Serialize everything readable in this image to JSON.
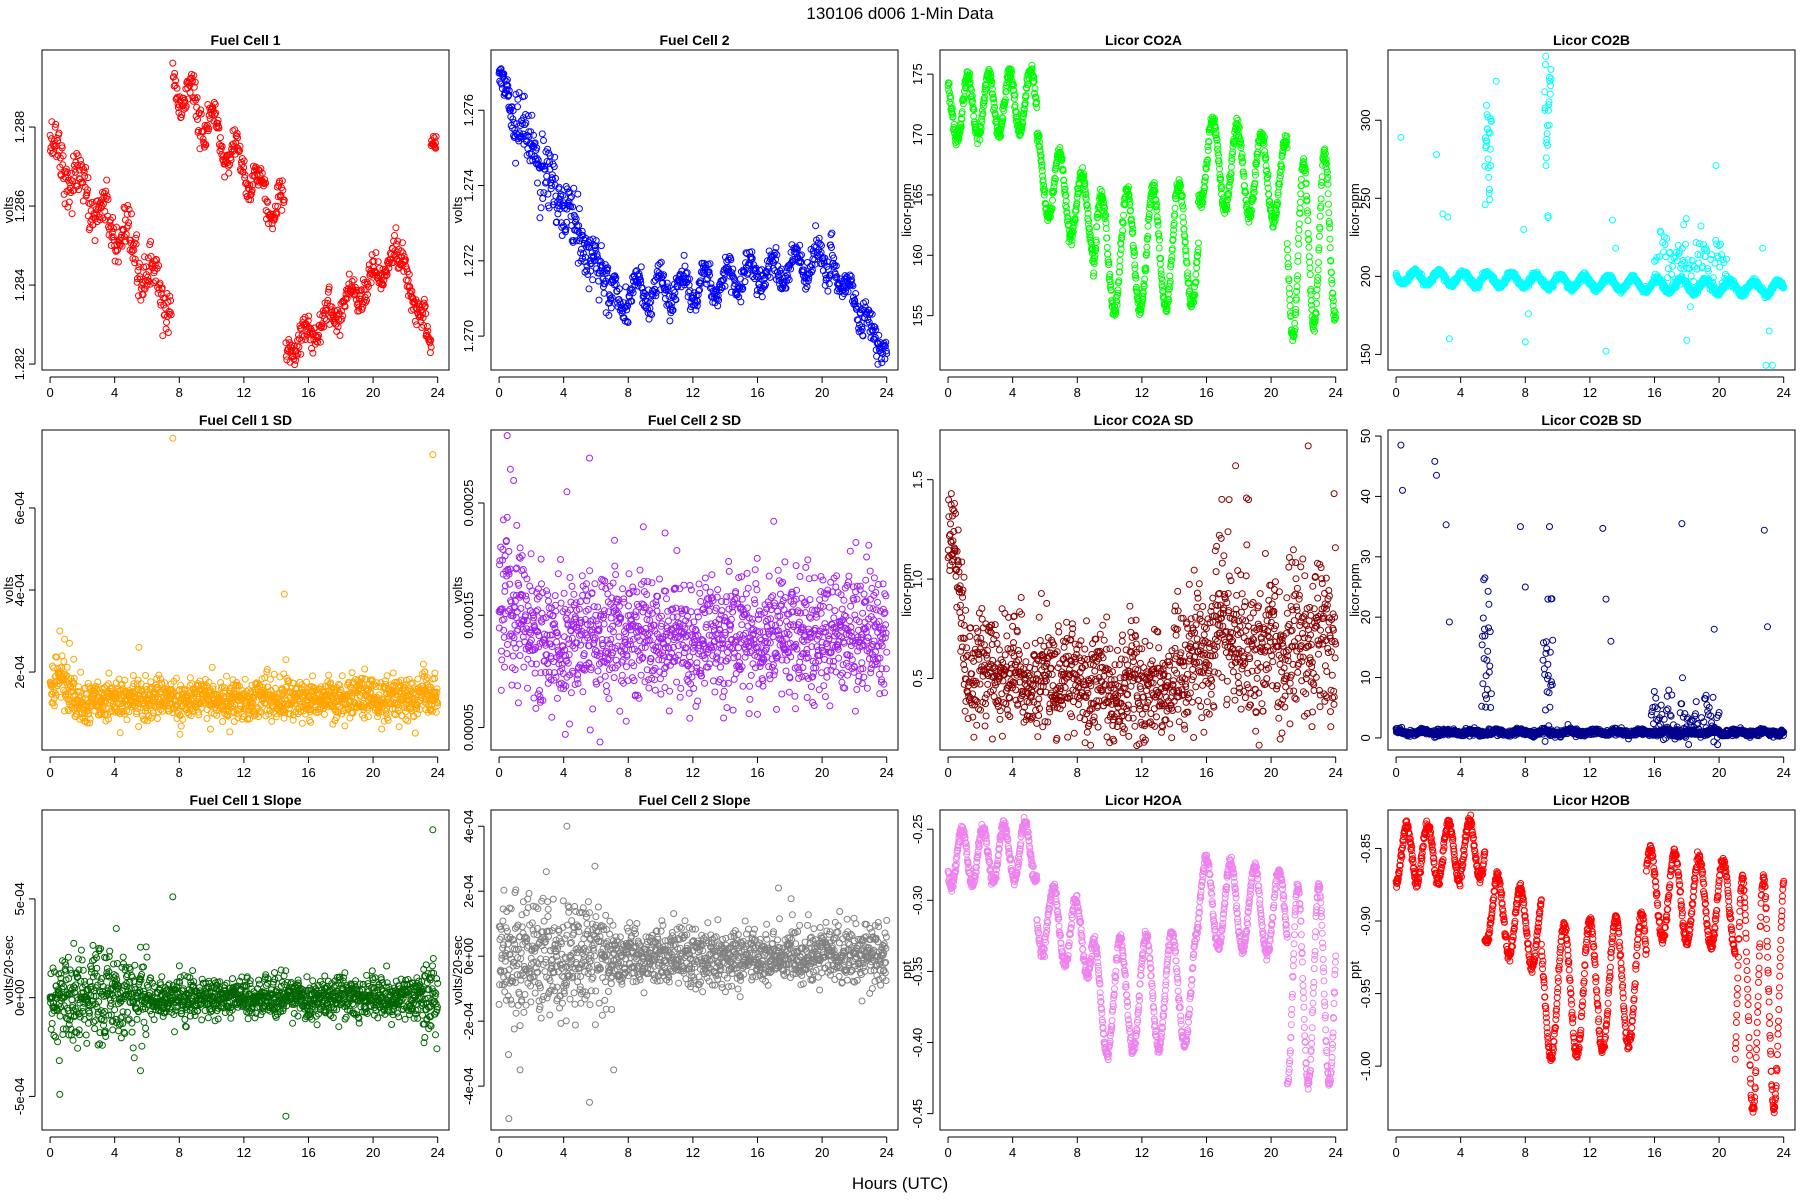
{
  "figure": {
    "title": "130106    d006    1-Min Data",
    "xlabel": "Hours (UTC)",
    "x_ticks": [
      0,
      4,
      8,
      12,
      16,
      20,
      24
    ]
  },
  "chart_data": [
    {
      "type": "scatter",
      "title": "Fuel Cell 1",
      "ylabel": "volts",
      "color": "#ff0000",
      "xlim": [
        -0.5,
        24.7
      ],
      "ylim": [
        1.28185,
        1.28995
      ],
      "y_ticks": [
        1.282,
        1.284,
        1.286,
        1.288
      ],
      "y_tick_labels": [
        "1.282",
        "1.284",
        "1.286",
        "1.288"
      ],
      "series": [
        {
          "segments": [
            {
              "x0": 0.0,
              "x1": 7.5,
              "y0": 1.2875,
              "y1": 1.2835,
              "osc": 0.0004,
              "period": 1.5,
              "noise": 0.0003,
              "n": 260
            },
            {
              "x0": 7.6,
              "x1": 14.5,
              "y0": 1.2892,
              "y1": 1.2857,
              "osc": 0.0005,
              "period": 1.4,
              "noise": 0.0002,
              "n": 240
            },
            {
              "x0": 14.6,
              "x1": 21.5,
              "y0": 1.2823,
              "y1": 1.2847,
              "osc": 0.0003,
              "period": 1.4,
              "noise": 0.0002,
              "n": 240
            },
            {
              "x0": 21.5,
              "x1": 23.6,
              "y0": 1.2847,
              "y1": 1.2826,
              "osc": 0.0002,
              "period": 1.2,
              "noise": 0.0002,
              "n": 80
            },
            {
              "x0": 23.6,
              "x1": 23.9,
              "y0": 1.2876,
              "y1": 1.2876,
              "osc": 0.0,
              "period": 1.0,
              "noise": 0.0001,
              "n": 15
            }
          ]
        }
      ]
    },
    {
      "type": "scatter",
      "title": "Fuel Cell 2",
      "ylabel": "volts",
      "color": "#0000ff",
      "xlim": [
        -0.5,
        24.7
      ],
      "ylim": [
        1.2691,
        1.2776
      ],
      "y_ticks": [
        1.27,
        1.272,
        1.274,
        1.276
      ],
      "y_tick_labels": [
        "1.270",
        "1.272",
        "1.274",
        "1.276"
      ],
      "series": [
        {
          "segments": [
            {
              "x0": 0.0,
              "x1": 0.6,
              "y0": 1.277,
              "y1": 1.2765,
              "osc": 0.0,
              "period": 1.0,
              "noise": 0.0002,
              "n": 30
            },
            {
              "x0": 0.6,
              "x1": 7.0,
              "y0": 1.276,
              "y1": 1.2712,
              "osc": 0.0002,
              "period": 1.5,
              "noise": 0.0004,
              "n": 260
            },
            {
              "x0": 7.0,
              "x1": 20.5,
              "y0": 1.271,
              "y1": 1.272,
              "osc": 0.0004,
              "period": 1.4,
              "noise": 0.0002,
              "n": 480
            },
            {
              "x0": 20.5,
              "x1": 24.0,
              "y0": 1.272,
              "y1": 1.2695,
              "osc": 0.0003,
              "period": 1.2,
              "noise": 0.0002,
              "n": 130
            }
          ]
        }
      ]
    },
    {
      "type": "scatter",
      "title": "Licor CO2A",
      "ylabel": "licor-ppm",
      "color": "#00ff00",
      "xlim": [
        -0.5,
        24.7
      ],
      "ylim": [
        150.5,
        177.0
      ],
      "y_ticks": [
        155,
        160,
        165,
        170,
        175
      ],
      "y_tick_labels": [
        "155",
        "160",
        "165",
        "170",
        "175"
      ],
      "series": [
        {
          "segments": [
            {
              "x0": 0.0,
              "x1": 5.5,
              "y0": 172,
              "y1": 173,
              "osc": 2.5,
              "period": 1.3,
              "noise": 0.3,
              "n": 320
            },
            {
              "x0": 5.5,
              "x1": 9.0,
              "y0": 167,
              "y1": 163,
              "osc": 3.0,
              "period": 1.4,
              "noise": 0.3,
              "n": 200
            },
            {
              "x0": 9.0,
              "x1": 15.5,
              "y0": 160,
              "y1": 161,
              "osc": 5.0,
              "period": 1.6,
              "noise": 0.3,
              "n": 360
            },
            {
              "x0": 15.5,
              "x1": 21.0,
              "y0": 168,
              "y1": 166,
              "osc": 3.5,
              "period": 1.5,
              "noise": 0.3,
              "n": 300
            },
            {
              "x0": 21.0,
              "x1": 24.0,
              "y0": 160,
              "y1": 162,
              "osc": 7.0,
              "period": 1.3,
              "noise": 0.3,
              "n": 170
            }
          ]
        }
      ]
    },
    {
      "type": "scatter",
      "title": "Licor CO2B",
      "ylabel": "licor-ppm",
      "color": "#00ffff",
      "xlim": [
        -0.5,
        24.7
      ],
      "ylim": [
        140,
        345
      ],
      "y_ticks": [
        150,
        200,
        250,
        300
      ],
      "y_tick_labels": [
        "150",
        "200",
        "250",
        "300"
      ],
      "series": [
        {
          "segments": [
            {
              "x0": 0.0,
              "x1": 24.0,
              "y0": 200,
              "y1": 192,
              "osc": 4.0,
              "period": 1.5,
              "noise": 1.0,
              "n": 1300
            },
            {
              "x0": 5.5,
              "x1": 5.9,
              "y0": 280,
              "y1": 285,
              "osc": 20,
              "period": 0.3,
              "noise": 15,
              "n": 25
            },
            {
              "x0": 9.2,
              "x1": 9.6,
              "y0": 290,
              "y1": 300,
              "osc": 20,
              "period": 0.3,
              "noise": 20,
              "n": 25
            },
            {
              "x0": 16.0,
              "x1": 20.5,
              "y0": 212,
              "y1": 208,
              "osc": 6,
              "period": 1.2,
              "noise": 9,
              "n": 90
            }
          ]
        }
      ],
      "extra_points": {
        "x": [
          0.3,
          2.5,
          2.9,
          3.2,
          3.3,
          6.2,
          7.9,
          8.0,
          8.2,
          13.0,
          13.4,
          13.6,
          17.8,
          18.0,
          19.8,
          22.7,
          22.9,
          23.1,
          23.3
        ],
        "y": [
          289,
          278,
          240,
          238,
          160,
          325,
          230,
          158,
          176,
          152,
          236,
          218,
          233,
          159,
          271,
          218,
          143,
          165,
          143
        ]
      }
    },
    {
      "type": "scatter",
      "title": "Fuel Cell 1 SD",
      "ylabel": "volts",
      "color": "#ffa500",
      "xlim": [
        -0.5,
        24.7
      ],
      "ylim": [
        1e-05,
        0.00079
      ],
      "y_ticks": [
        0.0002,
        0.0004,
        0.0006
      ],
      "y_tick_labels": [
        "2e-04",
        "4e-04",
        "6e-04"
      ],
      "series": [
        {
          "segments": [
            {
              "x0": 0.0,
              "x1": 1.5,
              "y0": 0.00018,
              "y1": 0.00016,
              "osc": 2e-05,
              "period": 1.0,
              "noise": 3e-05,
              "n": 80
            },
            {
              "x0": 1.5,
              "x1": 24.0,
              "y0": 0.00013,
              "y1": 0.00014,
              "osc": 5e-06,
              "period": 2.0,
              "noise": 2.5e-05,
              "n": 1300
            }
          ]
        }
      ],
      "extra_points": {
        "x": [
          0.6,
          0.9,
          1.2,
          5.5,
          7.6,
          14.5,
          14.6,
          23.7
        ],
        "y": [
          0.0003,
          0.00028,
          0.00027,
          0.00026,
          0.00077,
          0.00039,
          0.00023,
          0.00073
        ]
      }
    },
    {
      "type": "scatter",
      "title": "Fuel Cell 2 SD",
      "ylabel": "volts",
      "color": "#a020f0",
      "xlim": [
        -0.5,
        24.7
      ],
      "ylim": [
        3e-05,
        0.000315
      ],
      "y_ticks": [
        5e-05,
        0.00015,
        0.00025
      ],
      "y_tick_labels": [
        "0.00005",
        "0.00015",
        "0.00025"
      ],
      "series": [
        {
          "segments": [
            {
              "x0": 0.0,
              "x1": 1.5,
              "y0": 0.00017,
              "y1": 0.00015,
              "osc": 1e-05,
              "period": 1.0,
              "noise": 3.5e-05,
              "n": 90
            },
            {
              "x0": 1.5,
              "x1": 24.0,
              "y0": 0.00013,
              "y1": 0.00013,
              "osc": 5e-06,
              "period": 2.0,
              "noise": 2.8e-05,
              "n": 1300
            }
          ]
        }
      ],
      "extra_points": {
        "x": [
          0.5,
          0.7,
          0.9,
          1.1,
          1.3,
          4.2,
          5.6,
          2.6
        ],
        "y": [
          0.00031,
          0.00028,
          0.00027,
          0.00023,
          0.00021,
          0.00026,
          0.00029,
          0.0002
        ]
      }
    },
    {
      "type": "scatter",
      "title": "Licor CO2A SD",
      "ylabel": "licor-ppm",
      "color": "#8b0000",
      "xlim": [
        -0.5,
        24.7
      ],
      "ylim": [
        0.14,
        1.75
      ],
      "y_ticks": [
        0.5,
        1.0,
        1.5
      ],
      "y_tick_labels": [
        "0.5",
        "1.0",
        "1.5"
      ],
      "series": [
        {
          "segments": [
            {
              "x0": 0.0,
              "x1": 1.0,
              "y0": 1.25,
              "y1": 0.9,
              "osc": 0.05,
              "period": 1.0,
              "noise": 0.12,
              "n": 60
            },
            {
              "x0": 1.0,
              "x1": 14.0,
              "y0": 0.55,
              "y1": 0.42,
              "osc": 0.05,
              "period": 1.8,
              "noise": 0.14,
              "n": 760
            },
            {
              "x0": 14.0,
              "x1": 18.0,
              "y0": 0.55,
              "y1": 0.8,
              "osc": 0.08,
              "period": 1.5,
              "noise": 0.18,
              "n": 240
            },
            {
              "x0": 18.0,
              "x1": 24.0,
              "y0": 0.62,
              "y1": 0.75,
              "osc": 0.08,
              "period": 1.5,
              "noise": 0.2,
              "n": 340
            }
          ]
        }
      ],
      "extra_points": {
        "x": [
          0.2,
          0.4,
          17.4,
          17.8,
          18.6,
          22.3,
          23.9
        ],
        "y": [
          1.43,
          1.38,
          1.4,
          1.57,
          1.4,
          1.67,
          1.43
        ]
      }
    },
    {
      "type": "scatter",
      "title": "Licor CO2B SD",
      "ylabel": "licor-ppm",
      "color": "#00008b",
      "xlim": [
        -0.5,
        24.7
      ],
      "ylim": [
        -2,
        51
      ],
      "y_ticks": [
        0,
        10,
        20,
        30,
        40,
        50
      ],
      "y_tick_labels": [
        "0",
        "10",
        "20",
        "30",
        "40",
        "50"
      ],
      "series": [
        {
          "segments": [
            {
              "x0": 0.0,
              "x1": 24.0,
              "y0": 0.9,
              "y1": 0.9,
              "osc": 0.2,
              "period": 1.5,
              "noise": 0.25,
              "n": 1300
            },
            {
              "x0": 5.3,
              "x1": 5.9,
              "y0": 12,
              "y1": 12,
              "osc": 6,
              "period": 0.3,
              "noise": 4,
              "n": 25
            },
            {
              "x0": 9.1,
              "x1": 9.7,
              "y0": 11,
              "y1": 11,
              "osc": 6,
              "period": 0.3,
              "noise": 4,
              "n": 25
            },
            {
              "x0": 15.8,
              "x1": 20.0,
              "y0": 3,
              "y1": 3,
              "osc": 2,
              "period": 0.8,
              "noise": 2.5,
              "n": 90
            }
          ]
        }
      ],
      "extra_points": {
        "x": [
          0.3,
          0.4,
          2.4,
          2.5,
          3.1,
          3.3,
          5.5,
          7.7,
          8.0,
          9.4,
          9.5,
          12.8,
          13.0,
          13.3,
          17.7,
          19.7,
          22.8,
          23.0
        ],
        "y": [
          48.5,
          41,
          45.8,
          43.5,
          35.3,
          19.2,
          26.5,
          35,
          25,
          23,
          35,
          34.7,
          23,
          16,
          35.5,
          18,
          34.4,
          18.4
        ]
      }
    },
    {
      "type": "scatter",
      "title": "Fuel Cell 1 Slope",
      "ylabel": "volts/20-sec",
      "color": "#006400",
      "xlim": [
        -0.5,
        24.7
      ],
      "ylim": [
        -0.00067,
        0.00095
      ],
      "y_ticks": [
        -0.0005,
        0.0,
        0.0005
      ],
      "y_tick_labels": [
        "-5e-04",
        "0e+00",
        "5e-04"
      ],
      "series": [
        {
          "segments": [
            {
              "x0": 0.0,
              "x1": 6.0,
              "y0": 0.0,
              "y1": 0.0,
              "osc": 0.0,
              "period": 1.0,
              "noise": 0.00011,
              "n": 360
            },
            {
              "x0": 6.0,
              "x1": 23.0,
              "y0": 0.0,
              "y1": 0.0,
              "osc": 0.0,
              "period": 1.0,
              "noise": 5e-05,
              "n": 1000
            },
            {
              "x0": 23.0,
              "x1": 24.0,
              "y0": 0.0,
              "y1": 0.0,
              "osc": 0.0,
              "period": 1.0,
              "noise": 0.0001,
              "n": 60
            }
          ]
        }
      ],
      "extra_points": {
        "x": [
          0.6,
          4.1,
          5.6,
          7.6,
          14.6,
          23.7
        ],
        "y": [
          -0.00049,
          0.00035,
          -0.00037,
          0.00051,
          -0.0006,
          0.00085
        ]
      }
    },
    {
      "type": "scatter",
      "title": "Fuel Cell 2 Slope",
      "ylabel": "volts/20-sec",
      "color": "#808080",
      "xlim": [
        -0.5,
        24.7
      ],
      "ylim": [
        -0.000535,
        0.00045
      ],
      "y_ticks": [
        -0.0004,
        -0.0002,
        0.0,
        0.0002,
        0.0004
      ],
      "y_tick_labels": [
        "-4e-04",
        "-2e-04",
        "0e+00",
        "2e-04",
        "4e-04"
      ],
      "series": [
        {
          "segments": [
            {
              "x0": 0.0,
              "x1": 7.0,
              "y0": 0.0,
              "y1": 0.0,
              "osc": 0.0,
              "period": 1.0,
              "noise": 9e-05,
              "n": 420
            },
            {
              "x0": 7.0,
              "x1": 24.0,
              "y0": 0.0,
              "y1": 0.0,
              "osc": 0.0,
              "period": 1.0,
              "noise": 4.5e-05,
              "n": 1000
            }
          ]
        }
      ],
      "extra_points": {
        "x": [
          0.6,
          4.2,
          5.6,
          7.1,
          1.3,
          17.3
        ],
        "y": [
          -0.0005,
          0.0004,
          -0.00045,
          -0.00035,
          -0.00035,
          0.00021
        ]
      }
    },
    {
      "type": "scatter",
      "title": "Licor H2OA",
      "ylabel": "ppt",
      "color": "#ee82ee",
      "xlim": [
        -0.5,
        24.7
      ],
      "ylim": [
        -0.4615,
        -0.2365
      ],
      "y_ticks": [
        -0.45,
        -0.4,
        -0.35,
        -0.3,
        -0.25
      ],
      "y_tick_labels": [
        "-0.45",
        "-0.40",
        "-0.35",
        "-0.30",
        "-0.25"
      ],
      "series": [
        {
          "segments": [
            {
              "x0": 0.0,
              "x1": 5.5,
              "y0": -0.27,
              "y1": -0.265,
              "osc": 0.02,
              "period": 1.3,
              "noise": 0.002,
              "n": 320
            },
            {
              "x0": 5.5,
              "x1": 9.0,
              "y0": -0.31,
              "y1": -0.33,
              "osc": 0.025,
              "period": 1.4,
              "noise": 0.002,
              "n": 200
            },
            {
              "x0": 9.0,
              "x1": 15.5,
              "y0": -0.37,
              "y1": -0.36,
              "osc": 0.04,
              "period": 1.6,
              "noise": 0.002,
              "n": 360
            },
            {
              "x0": 15.5,
              "x1": 21.0,
              "y0": -0.3,
              "y1": -0.31,
              "osc": 0.03,
              "period": 1.5,
              "noise": 0.002,
              "n": 300
            },
            {
              "x0": 21.0,
              "x1": 24.0,
              "y0": -0.36,
              "y1": -0.36,
              "osc": 0.07,
              "period": 1.3,
              "noise": 0.002,
              "n": 170
            }
          ]
        }
      ]
    },
    {
      "type": "scatter",
      "title": "Licor H2OB",
      "ylabel": "ppt",
      "color": "#ff0000",
      "xlim": [
        -0.5,
        24.7
      ],
      "ylim": [
        -1.044,
        -0.8235
      ],
      "y_ticks": [
        -1.0,
        -0.95,
        -0.9,
        -0.85
      ],
      "y_tick_labels": [
        "-1.00",
        "-0.95",
        "-0.90",
        "-0.85"
      ],
      "series": [
        {
          "segments": [
            {
              "x0": 0.0,
              "x1": 5.5,
              "y0": -0.855,
              "y1": -0.85,
              "osc": 0.02,
              "period": 1.3,
              "noise": 0.002,
              "n": 320
            },
            {
              "x0": 5.5,
              "x1": 9.0,
              "y0": -0.89,
              "y1": -0.91,
              "osc": 0.025,
              "period": 1.4,
              "noise": 0.002,
              "n": 200
            },
            {
              "x0": 9.0,
              "x1": 15.5,
              "y0": -0.95,
              "y1": -0.94,
              "osc": 0.045,
              "period": 1.6,
              "noise": 0.002,
              "n": 360
            },
            {
              "x0": 15.5,
              "x1": 21.0,
              "y0": -0.88,
              "y1": -0.89,
              "osc": 0.03,
              "period": 1.5,
              "noise": 0.002,
              "n": 300
            },
            {
              "x0": 21.0,
              "x1": 24.0,
              "y0": -0.95,
              "y1": -0.95,
              "osc": 0.08,
              "period": 1.3,
              "noise": 0.002,
              "n": 170
            }
          ]
        }
      ]
    }
  ]
}
